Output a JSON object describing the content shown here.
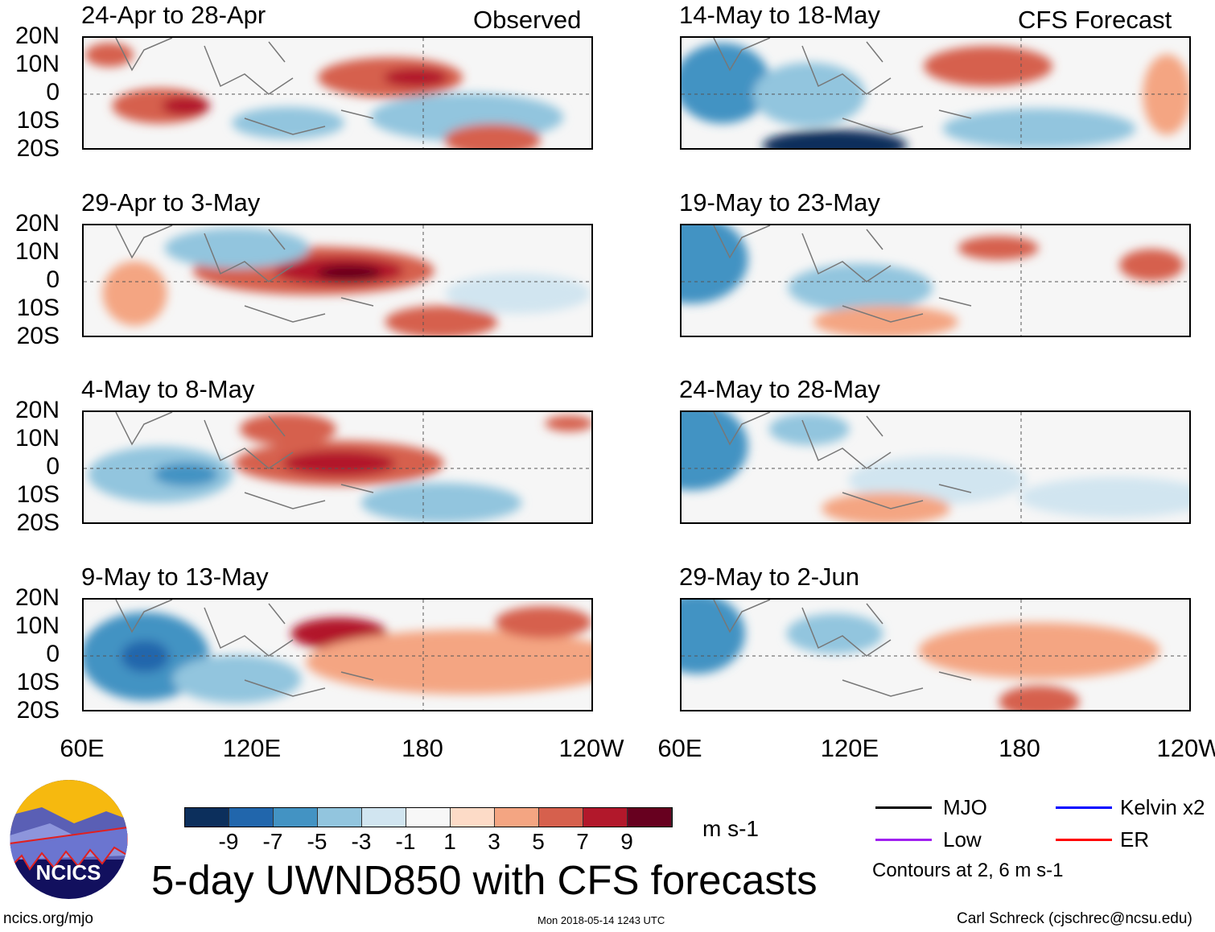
{
  "chart_data": {
    "type": "heatmap",
    "title": "5-day UWND850 with CFS forecasts",
    "variable": "UWND850 anomaly",
    "units": "m s-1",
    "observed_label": "Observed",
    "forecast_label": "CFS Forecast",
    "lat_ticks": [
      "20N",
      "10N",
      "0",
      "10S",
      "20S"
    ],
    "lon_ticks": [
      "60E",
      "120E",
      "180",
      "120W"
    ],
    "panels": [
      {
        "title": "24-Apr to 28-Apr",
        "type": "Observed"
      },
      {
        "title": "29-Apr to 3-May",
        "type": "Observed"
      },
      {
        "title": "4-May to 8-May",
        "type": "Observed"
      },
      {
        "title": "9-May to 13-May",
        "type": "Observed"
      },
      {
        "title": "14-May to 18-May",
        "type": "CFS Forecast"
      },
      {
        "title": "19-May to 23-May",
        "type": "CFS Forecast"
      },
      {
        "title": "24-May to 28-May",
        "type": "CFS Forecast"
      },
      {
        "title": "29-May to 2-Jun",
        "type": "CFS Forecast"
      }
    ],
    "colorbar": {
      "labels": [
        "-9",
        "-7",
        "-5",
        "-3",
        "-1",
        "1",
        "3",
        "5",
        "7",
        "9"
      ],
      "colors": [
        "#0c2f5c",
        "#2166ac",
        "#4393c3",
        "#92c5de",
        "#d1e5f0",
        "#f7f7f7",
        "#fddbc7",
        "#f4a582",
        "#d6604d",
        "#b2182b",
        "#67001f"
      ]
    },
    "legend": [
      {
        "label": "MJO",
        "color": "#000000"
      },
      {
        "label": "Kelvin x2",
        "color": "#0000ff"
      },
      {
        "label": "Low",
        "color": "#a020f0"
      },
      {
        "label": "ER",
        "color": "#ff0000"
      }
    ],
    "contour_note": "Contours at 2, 6 m s-1"
  },
  "footer": {
    "site": "ncics.org/mjo",
    "timestamp": "Mon 2018-05-14 1243 UTC",
    "author": "Carl Schreck (cjschrec@ncsu.edu)",
    "logo_text": "NCICS"
  }
}
